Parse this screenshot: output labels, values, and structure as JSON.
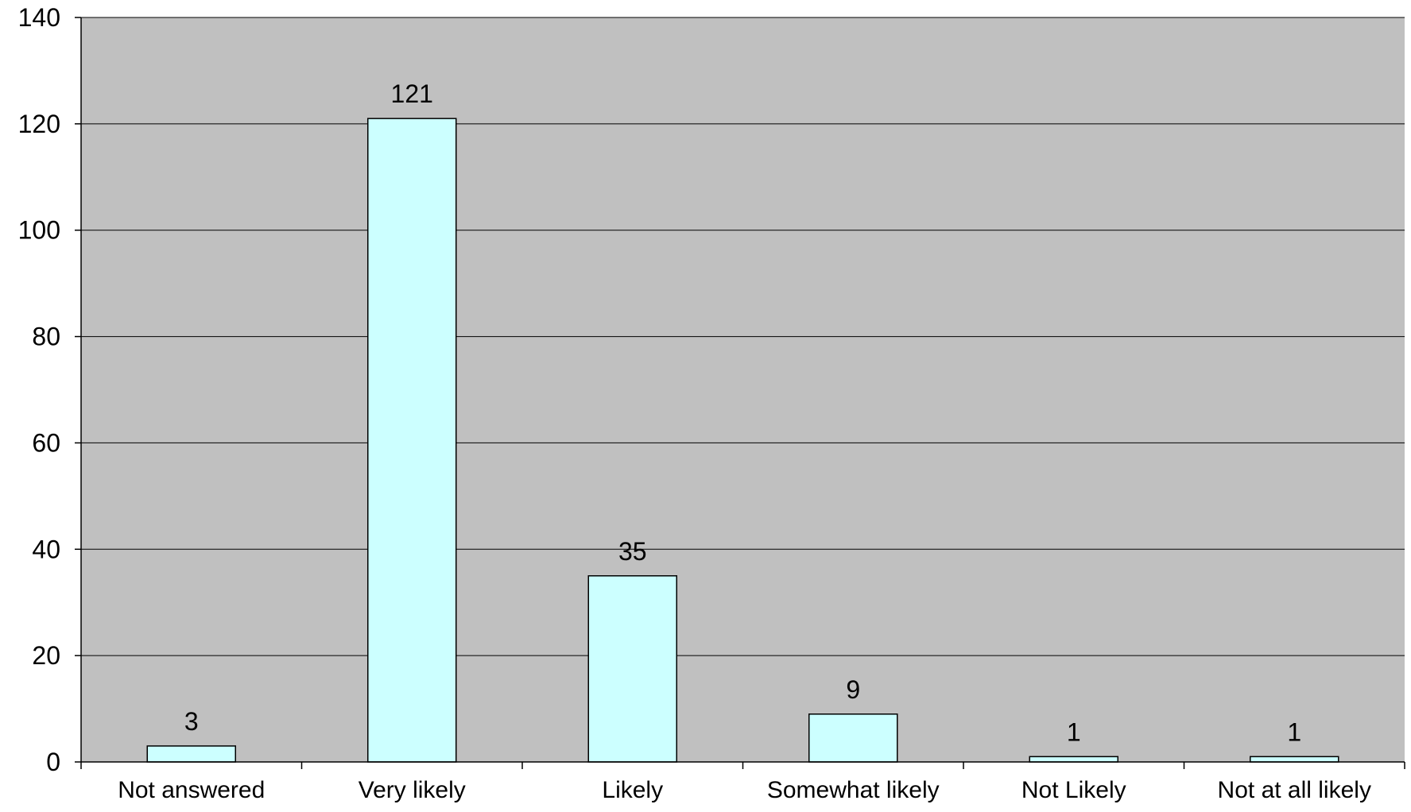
{
  "chart_data": {
    "type": "bar",
    "title": "",
    "xlabel": "",
    "ylabel": "",
    "categories": [
      "Not answered",
      "Very likely",
      "Likely",
      "Somewhat likely",
      "Not Likely",
      "Not at all likely"
    ],
    "values": [
      3,
      121,
      35,
      9,
      1,
      1
    ],
    "ylim": [
      0,
      140
    ],
    "yticks": [
      0,
      20,
      40,
      60,
      80,
      100,
      120,
      140
    ],
    "grid": true,
    "legend": "none",
    "data_labels": true,
    "colors": {
      "plot_background": "#c0c0c0",
      "bar_fill": "#ccffff",
      "bar_stroke": "#000000",
      "gridline": "#000000"
    }
  }
}
